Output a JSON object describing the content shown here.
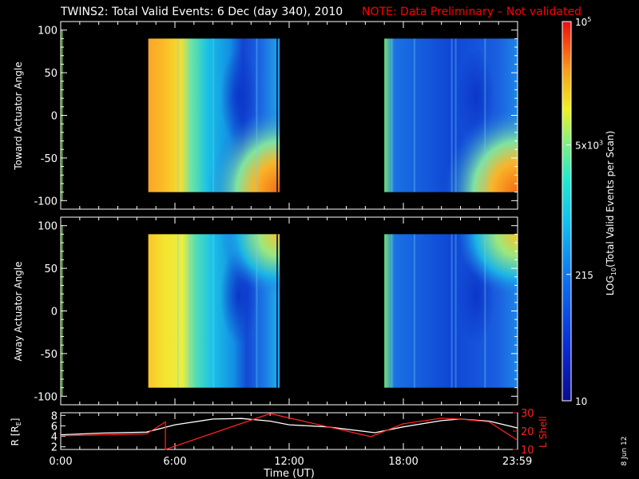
{
  "title": {
    "main": "TWINS2: Total Valid Events:  6 Dec (day 340), 2010",
    "note": "NOTE: Data Preliminary – Not validated"
  },
  "side_date": "8 Jun 12",
  "colors": {
    "background": "#000000",
    "text": "#ffffff",
    "note": "#ff0000",
    "rshell_line": "#ffffff",
    "lshell_line": "#ff2020"
  },
  "chart_data": [
    {
      "type": "heatmap",
      "name": "toward",
      "ylabel": "Toward Actuator Angle",
      "ylim": [
        -110,
        110
      ],
      "yticks": [
        -100,
        -50,
        0,
        50,
        100
      ],
      "xlim": [
        0,
        24
      ],
      "data_blocks": [
        {
          "t_start": 4.6,
          "t_end": 11.5,
          "angle_min": -90,
          "angle_max": 90
        },
        {
          "t_start": 17.0,
          "t_end": 24.0,
          "angle_min": -90,
          "angle_max": 90
        }
      ]
    },
    {
      "type": "heatmap",
      "name": "away",
      "ylabel": "Away Actuator Angle",
      "ylim": [
        -110,
        110
      ],
      "yticks": [
        -100,
        -50,
        0,
        50,
        100
      ],
      "xlim": [
        0,
        24
      ],
      "data_blocks": [
        {
          "t_start": 4.6,
          "t_end": 11.5,
          "angle_min": -90,
          "angle_max": 90
        },
        {
          "t_start": 17.0,
          "t_end": 24.0,
          "angle_min": -90,
          "angle_max": 90
        }
      ]
    },
    {
      "type": "line",
      "name": "orbit",
      "xlabel": "Time (UT)",
      "xlim": [
        0,
        24
      ],
      "xticks": [
        0,
        6,
        12,
        18,
        23.983
      ],
      "xtick_labels": [
        "0:00",
        "6:00",
        "12:00",
        "18:00",
        "23:59"
      ],
      "left_axis": {
        "label": "R [R",
        "label_sub": "E",
        "label_end": "]",
        "ylim": [
          1.5,
          8.5
        ],
        "ticks": [
          2,
          4,
          6,
          8
        ]
      },
      "right_axis": {
        "label": "L Shell",
        "ylim": [
          10,
          30
        ],
        "ticks": [
          10,
          20,
          30
        ]
      },
      "series": [
        {
          "axis": "left",
          "x": [
            0,
            2,
            4.5,
            6,
            8,
            9.5,
            11,
            12,
            14,
            16.5,
            18,
            20,
            21,
            22.5,
            24
          ],
          "y": [
            4.3,
            4.6,
            4.8,
            6.2,
            7.3,
            7.4,
            6.9,
            6.2,
            5.8,
            4.7,
            5.8,
            7.0,
            7.3,
            6.9,
            5.6
          ]
        },
        {
          "axis": "right",
          "x": [
            0,
            4.5,
            5.5,
            5.5,
            11,
            16.3,
            18,
            20,
            21,
            22.5,
            24
          ],
          "y": [
            17.5,
            18.5,
            25,
            10,
            29.5,
            17,
            24,
            27,
            26.5,
            25,
            15
          ]
        }
      ]
    },
    {
      "type": "heatmap",
      "name": "colorbar",
      "ylabel_prefix": "LOG",
      "ylabel_sub": "10",
      "ylabel_suffix": "(Total Valid Events per Scan)",
      "scale": "log",
      "ylim": [
        10,
        100000
      ],
      "ticks": [
        {
          "value": 10,
          "label": "10"
        },
        {
          "value": 215,
          "label": "215"
        },
        {
          "value": 5000,
          "label": "5x10",
          "sup": "3"
        },
        {
          "value": 100000,
          "label": "10",
          "sup": "5"
        }
      ]
    }
  ]
}
